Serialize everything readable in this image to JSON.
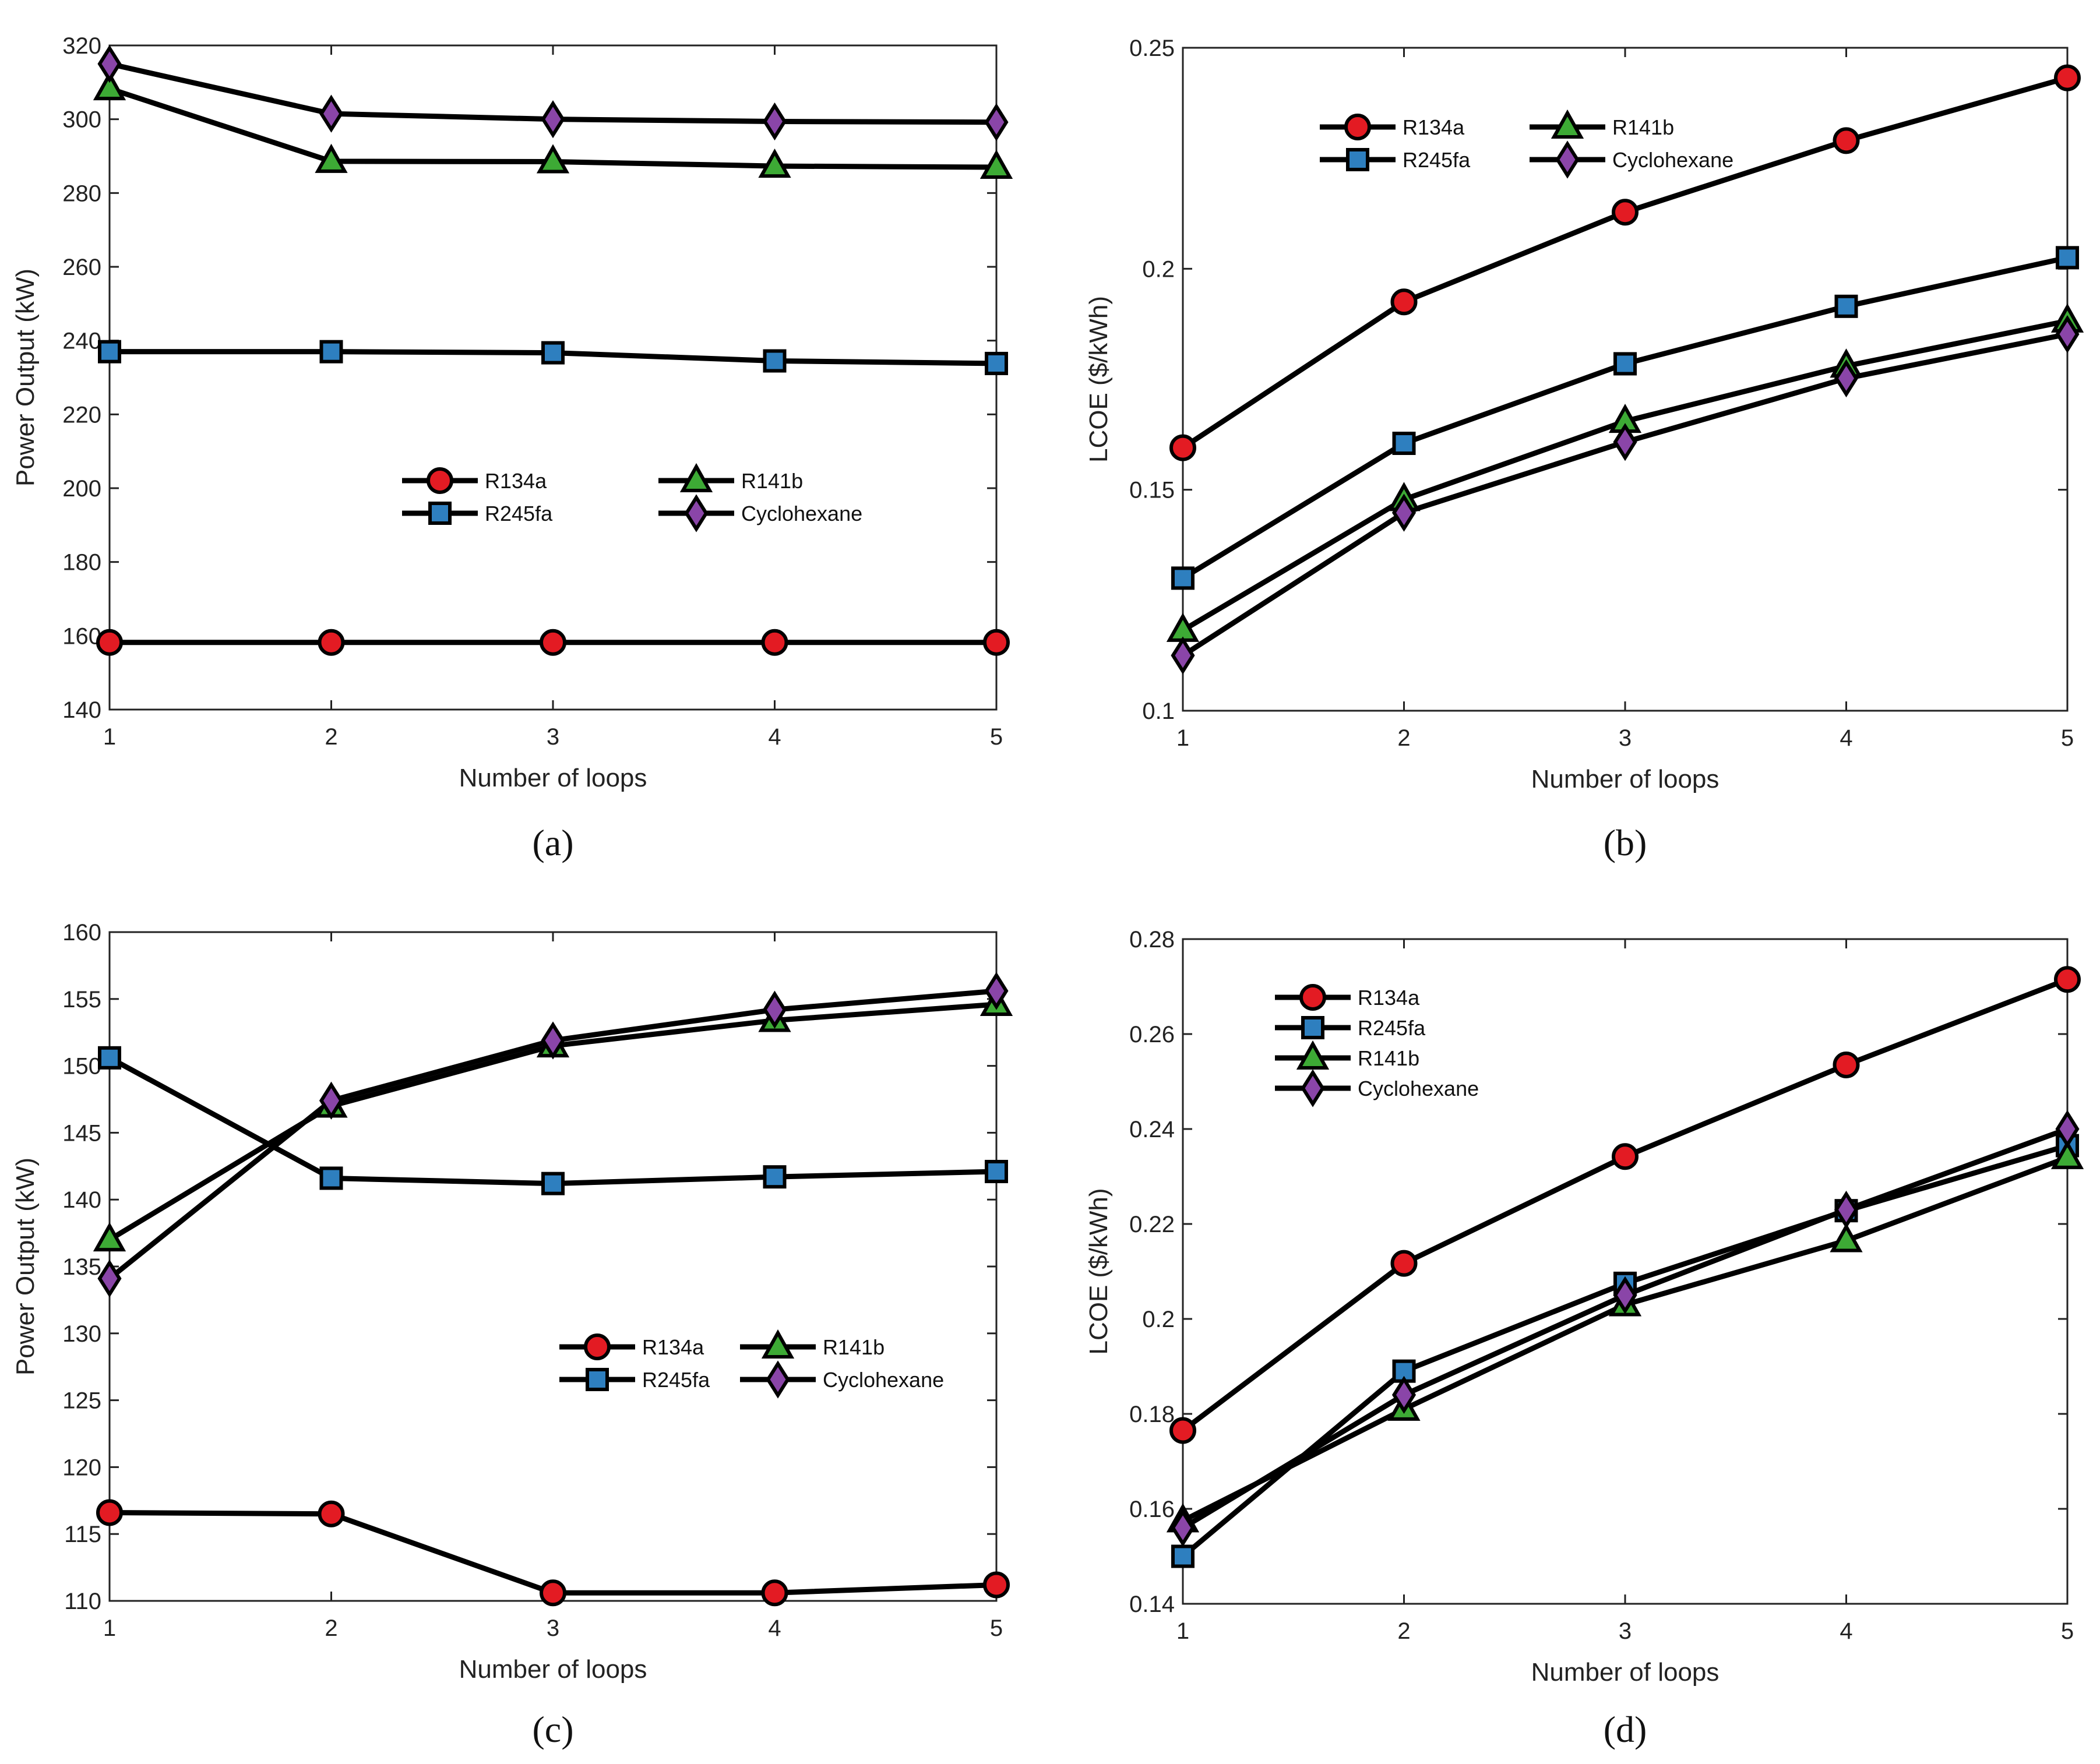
{
  "colors": {
    "line": "#000000",
    "axis": "#222222",
    "R134a": "#e31b23",
    "R245fa": "#2e7fbf",
    "R141b": "#3daa35",
    "Cyclohexane": "#8a45a8"
  },
  "series_markers": {
    "R134a": "circle",
    "R245fa": "square",
    "R141b": "triangle",
    "Cyclohexane": "diamond"
  },
  "chart_data": [
    {
      "panel": "a",
      "caption": "(a)",
      "type": "line",
      "xlabel": "Number of loops",
      "ylabel": "Power Output (kW)",
      "x": [
        1,
        2,
        3,
        4,
        5
      ],
      "xlim": [
        1,
        5
      ],
      "ylim": [
        140,
        320
      ],
      "xticks": [
        "1",
        "2",
        "3",
        "4",
        "5"
      ],
      "yticks": [
        "140",
        "160",
        "180",
        "200",
        "220",
        "240",
        "260",
        "280",
        "300",
        "320"
      ],
      "grid": false,
      "legend_position": "center",
      "legend_layout": "two-column",
      "legend": [
        "R134a",
        "R141b",
        "R245fa",
        "Cyclohexane"
      ],
      "series": [
        {
          "name": "R134a",
          "values": [
            158.2,
            158.2,
            158.2,
            158.2,
            158.2
          ]
        },
        {
          "name": "R245fa",
          "values": [
            237.0,
            237.0,
            236.7,
            234.5,
            233.8
          ]
        },
        {
          "name": "R141b",
          "values": [
            308.3,
            288.6,
            288.5,
            287.3,
            287.0
          ]
        },
        {
          "name": "Cyclohexane",
          "values": [
            315.0,
            301.5,
            300.0,
            299.4,
            299.2
          ]
        }
      ]
    },
    {
      "panel": "b",
      "caption": "(b)",
      "type": "line",
      "xlabel": "Number of loops",
      "ylabel": "LCOE ($/kWh)",
      "x": [
        1,
        2,
        3,
        4,
        5
      ],
      "xlim": [
        1,
        5
      ],
      "ylim": [
        0.1,
        0.25
      ],
      "xticks": [
        "1",
        "2",
        "3",
        "4",
        "5"
      ],
      "yticks": [
        "0.1",
        "0.15",
        "0.2",
        "0.25"
      ],
      "grid": false,
      "legend_position": "top-left",
      "legend_layout": "two-column",
      "legend": [
        "R134a",
        "R141b",
        "R245fa",
        "Cyclohexane"
      ],
      "series": [
        {
          "name": "R134a",
          "values": [
            0.1595,
            0.1925,
            0.2128,
            0.229,
            0.2432
          ]
        },
        {
          "name": "R245fa",
          "values": [
            0.13,
            0.1605,
            0.1785,
            0.1915,
            0.2025
          ]
        },
        {
          "name": "R141b",
          "values": [
            0.1182,
            0.1478,
            0.1655,
            0.178,
            0.1882
          ]
        },
        {
          "name": "Cyclohexane",
          "values": [
            0.1125,
            0.1448,
            0.1608,
            0.1752,
            0.1852
          ]
        }
      ]
    },
    {
      "panel": "c",
      "caption": "(c)",
      "type": "line",
      "xlabel": "Number of loops",
      "ylabel": "Power Output (kW)",
      "x": [
        1,
        2,
        3,
        4,
        5
      ],
      "xlim": [
        1,
        5
      ],
      "ylim": [
        110,
        160
      ],
      "xticks": [
        "1",
        "2",
        "3",
        "4",
        "5"
      ],
      "yticks": [
        "110",
        "115",
        "120",
        "125",
        "130",
        "135",
        "140",
        "145",
        "150",
        "155",
        "160"
      ],
      "grid": false,
      "legend_position": "center-right",
      "legend_layout": "two-column",
      "legend": [
        "R134a",
        "R141b",
        "R245fa",
        "Cyclohexane"
      ],
      "series": [
        {
          "name": "R134a",
          "values": [
            116.6,
            116.5,
            110.6,
            110.6,
            111.2
          ]
        },
        {
          "name": "R245fa",
          "values": [
            150.6,
            141.6,
            141.2,
            141.7,
            142.1
          ]
        },
        {
          "name": "R141b",
          "values": [
            137.0,
            147.0,
            151.5,
            153.4,
            154.6
          ]
        },
        {
          "name": "Cyclohexane",
          "values": [
            134.1,
            147.4,
            151.9,
            154.2,
            155.6
          ]
        }
      ]
    },
    {
      "panel": "d",
      "caption": "(d)",
      "type": "line",
      "xlabel": "Number of loops",
      "ylabel": "LCOE ($/kWh)",
      "x": [
        1,
        2,
        3,
        4,
        5
      ],
      "xlim": [
        1,
        5
      ],
      "ylim": [
        0.14,
        0.28
      ],
      "xticks": [
        "1",
        "2",
        "3",
        "4",
        "5"
      ],
      "yticks": [
        "0.14",
        "0.16",
        "0.18",
        "0.2",
        "0.22",
        "0.24",
        "0.26",
        "0.28"
      ],
      "grid": false,
      "legend_position": "top-left",
      "legend_layout": "one-column",
      "legend": [
        "R134a",
        "R245fa",
        "R141b",
        "Cyclohexane"
      ],
      "series": [
        {
          "name": "R134a",
          "values": [
            0.1765,
            0.2117,
            0.2342,
            0.2535,
            0.2715
          ]
        },
        {
          "name": "R245fa",
          "values": [
            0.15,
            0.189,
            0.2075,
            0.2228,
            0.2365
          ]
        },
        {
          "name": "R141b",
          "values": [
            0.1575,
            0.181,
            0.203,
            0.2165,
            0.234
          ]
        },
        {
          "name": "Cyclohexane",
          "values": [
            0.156,
            0.184,
            0.205,
            0.223,
            0.24
          ]
        }
      ]
    }
  ]
}
